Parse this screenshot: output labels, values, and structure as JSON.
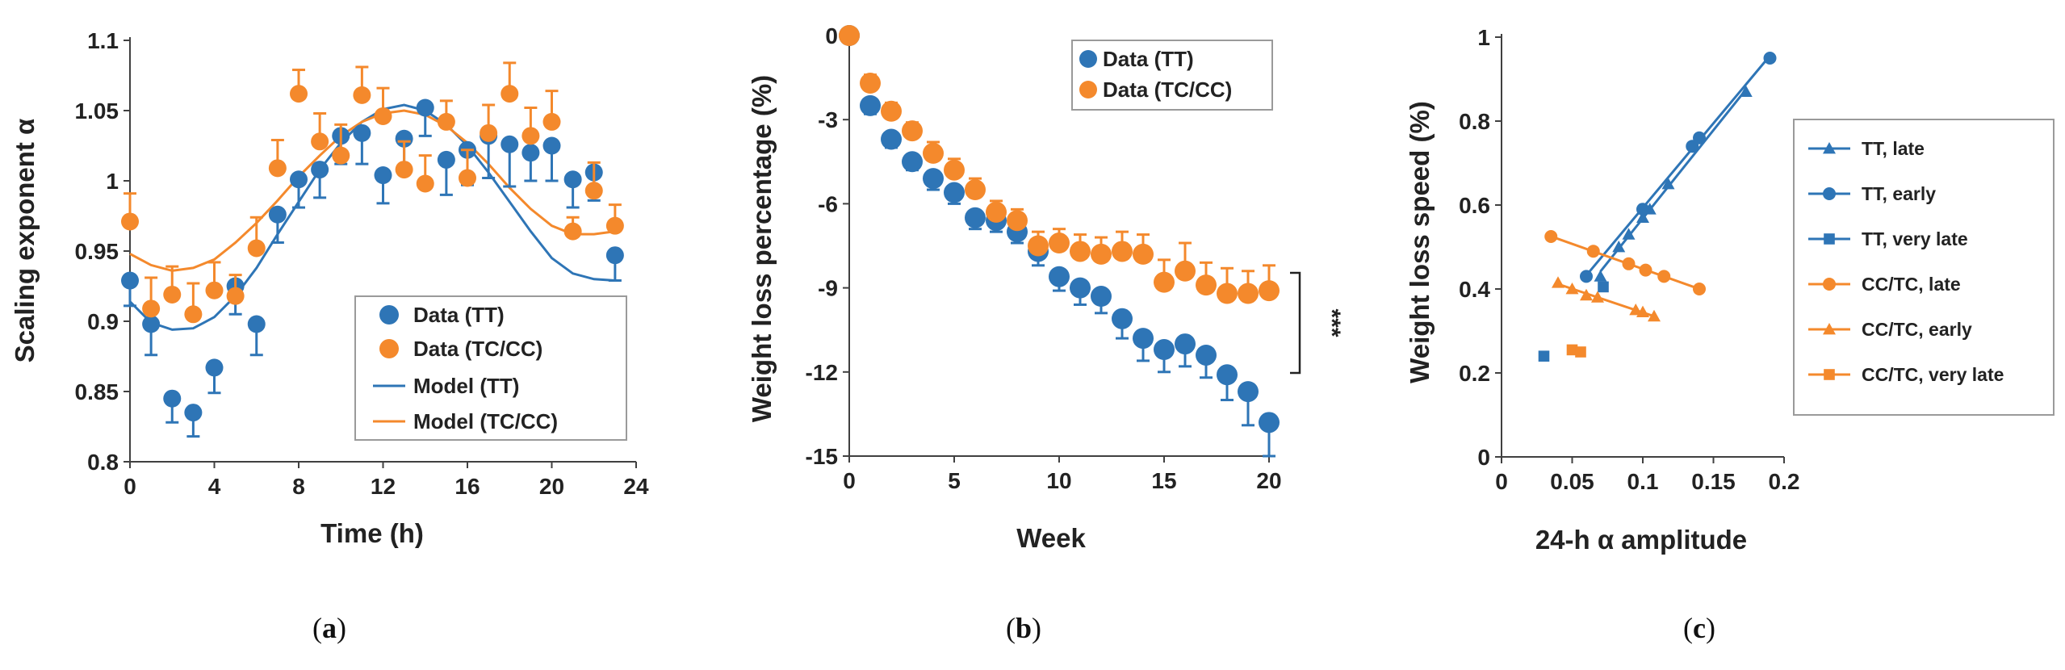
{
  "colors": {
    "tt": "#2e75b6",
    "tc": "#f4892c",
    "axis": "#404040"
  },
  "chart_data": [
    {
      "type": "scatter",
      "panel_label": "a",
      "xlabel": "Time (h)",
      "ylabel": "Scaling exponent α",
      "xlim": [
        0,
        24
      ],
      "ylim": [
        0.8,
        1.1
      ],
      "xticks": [
        "0",
        "4",
        "8",
        "12",
        "16",
        "20",
        "24"
      ],
      "yticks": [
        "0.8",
        "0.85",
        "0.9",
        "0.95",
        "1",
        "1.05",
        "1.1"
      ],
      "series": [
        {
          "name": "Data (TT)",
          "color": "#2e75b6",
          "error_bar": "down",
          "x": [
            0,
            1,
            2,
            3,
            4,
            5,
            6,
            7,
            8,
            9,
            10,
            11,
            12,
            13,
            14,
            15,
            16,
            17,
            18,
            19,
            20,
            21,
            22,
            23
          ],
          "y": [
            0.929,
            0.898,
            0.845,
            0.835,
            0.867,
            0.925,
            0.898,
            0.976,
            1.001,
            1.008,
            1.032,
            1.034,
            1.004,
            1.03,
            1.052,
            1.015,
            1.022,
            1.032,
            1.026,
            1.02,
            1.025,
            1.001,
            1.006,
            0.947
          ],
          "err": [
            0.018,
            0.022,
            0.017,
            0.017,
            0.018,
            0.02,
            0.022,
            0.02,
            0.02,
            0.02,
            0.02,
            0.022,
            0.02,
            0.02,
            0.02,
            0.025,
            0.025,
            0.03,
            0.03,
            0.02,
            0.025,
            0.02,
            0.02,
            0.018
          ]
        },
        {
          "name": "Data (TC/CC)",
          "color": "#f4892c",
          "error_bar": "up",
          "x": [
            0,
            1,
            2,
            3,
            4,
            5,
            6,
            7,
            8,
            9,
            10,
            11,
            12,
            13,
            14,
            15,
            16,
            17,
            18,
            19,
            20,
            21,
            22,
            23
          ],
          "y": [
            0.971,
            0.909,
            0.919,
            0.905,
            0.922,
            0.918,
            0.952,
            1.009,
            1.062,
            1.028,
            1.018,
            1.061,
            1.046,
            1.008,
            0.998,
            1.042,
            1.002,
            1.034,
            1.062,
            1.032,
            1.042,
            0.964,
            0.993,
            0.968
          ],
          "err": [
            0.02,
            0.022,
            0.02,
            0.022,
            0.02,
            0.015,
            0.022,
            0.02,
            0.017,
            0.02,
            0.022,
            0.02,
            0.02,
            0.02,
            0.02,
            0.015,
            0.02,
            0.02,
            0.022,
            0.02,
            0.022,
            0.01,
            0.02,
            0.015
          ]
        },
        {
          "name": "Model (TT)",
          "color": "#2e75b6",
          "line": true,
          "x": [
            0,
            1,
            2,
            3,
            4,
            5,
            6,
            7,
            8,
            9,
            10,
            11,
            12,
            13,
            14,
            15,
            16,
            17,
            18,
            19,
            20,
            21,
            22,
            23
          ],
          "y": [
            0.914,
            0.899,
            0.894,
            0.895,
            0.903,
            0.918,
            0.938,
            0.962,
            0.985,
            1.008,
            1.027,
            1.042,
            1.051,
            1.054,
            1.05,
            1.04,
            1.025,
            1.006,
            0.985,
            0.964,
            0.945,
            0.934,
            0.93,
            0.929
          ]
        },
        {
          "name": "Model (TC/CC)",
          "color": "#f4892c",
          "line": true,
          "x": [
            0,
            1,
            2,
            3,
            4,
            5,
            6,
            7,
            8,
            9,
            10,
            11,
            12,
            13,
            14,
            15,
            16,
            17,
            18,
            19,
            20,
            21,
            22,
            23
          ],
          "y": [
            0.948,
            0.94,
            0.936,
            0.938,
            0.944,
            0.956,
            0.97,
            0.986,
            1.003,
            1.018,
            1.032,
            1.042,
            1.048,
            1.05,
            1.047,
            1.039,
            1.027,
            1.012,
            0.995,
            0.98,
            0.968,
            0.962,
            0.962,
            0.964
          ]
        }
      ],
      "legend": [
        "Data (TT)",
        "Data (TC/CC)",
        "Model (TT)",
        "Model (TC/CC)"
      ]
    },
    {
      "type": "scatter",
      "panel_label": "b",
      "xlabel": "Week",
      "ylabel": "Weight loss percentage (%)",
      "xlim": [
        0,
        20
      ],
      "ylim": [
        -15,
        0
      ],
      "xticks": [
        "0",
        "5",
        "10",
        "15",
        "20"
      ],
      "yticks": [
        "0",
        "-3",
        "-6",
        "-9",
        "-12",
        "-15"
      ],
      "annotation": "***",
      "series": [
        {
          "name": "Data (TT)",
          "color": "#2e75b6",
          "error_bar": "down",
          "x": [
            0,
            1,
            2,
            3,
            4,
            5,
            6,
            7,
            8,
            9,
            10,
            11,
            12,
            13,
            14,
            15,
            16,
            17,
            18,
            19,
            20
          ],
          "y": [
            0,
            -2.5,
            -3.7,
            -4.5,
            -5.1,
            -5.6,
            -6.5,
            -6.6,
            -7.0,
            -7.7,
            -8.6,
            -9.0,
            -9.3,
            -10.1,
            -10.8,
            -11.2,
            -11.0,
            -11.4,
            -12.1,
            -12.7,
            -13.8
          ],
          "err": [
            0,
            0.3,
            0.3,
            0.3,
            0.4,
            0.4,
            0.4,
            0.4,
            0.4,
            0.5,
            0.5,
            0.6,
            0.6,
            0.7,
            0.8,
            0.8,
            0.8,
            0.8,
            0.9,
            1.2,
            1.2
          ]
        },
        {
          "name": "Data (TC/CC)",
          "color": "#f4892c",
          "error_bar": "up",
          "x": [
            0,
            1,
            2,
            3,
            4,
            5,
            6,
            7,
            8,
            9,
            10,
            11,
            12,
            13,
            14,
            15,
            16,
            17,
            18,
            19,
            20
          ],
          "y": [
            0,
            -1.7,
            -2.7,
            -3.4,
            -4.2,
            -4.8,
            -5.5,
            -6.3,
            -6.6,
            -7.5,
            -7.4,
            -7.7,
            -7.8,
            -7.7,
            -7.8,
            -8.8,
            -8.4,
            -8.9,
            -9.2,
            -9.2,
            -9.1
          ],
          "err": [
            0,
            0.3,
            0.3,
            0.3,
            0.4,
            0.4,
            0.4,
            0.4,
            0.4,
            0.5,
            0.5,
            0.6,
            0.6,
            0.7,
            0.7,
            0.8,
            1.0,
            0.8,
            0.9,
            0.8,
            0.9
          ]
        }
      ],
      "legend": [
        "Data (TT)",
        "Data (TC/CC)"
      ]
    },
    {
      "type": "scatter",
      "panel_label": "c",
      "xlabel": "24-h α amplitude",
      "ylabel": "Weight loss speed (%)",
      "xlim": [
        0,
        0.2
      ],
      "ylim": [
        0,
        1
      ],
      "xticks": [
        "0",
        "0.05",
        "0.1",
        "0.15",
        "0.2"
      ],
      "yticks": [
        "0",
        "0.2",
        "0.4",
        "0.6",
        "0.8",
        "1"
      ],
      "series": [
        {
          "name": "TT, late",
          "color": "#2e75b6",
          "marker": "triangle",
          "line": true,
          "x": [
            0.07,
            0.083,
            0.09,
            0.1,
            0.105,
            0.118,
            0.173
          ],
          "y": [
            0.43,
            0.5,
            0.53,
            0.57,
            0.59,
            0.65,
            0.87
          ]
        },
        {
          "name": "TT, early",
          "color": "#2e75b6",
          "marker": "circle",
          "line": true,
          "x": [
            0.06,
            0.1,
            0.135,
            0.14,
            0.19
          ],
          "y": [
            0.43,
            0.59,
            0.74,
            0.76,
            0.95
          ]
        },
        {
          "name": "TT, very late",
          "color": "#2e75b6",
          "marker": "square",
          "x": [
            0.03,
            0.072
          ],
          "y": [
            0.24,
            0.405
          ]
        },
        {
          "name": "CC/TC, late",
          "color": "#f4892c",
          "marker": "circle",
          "line": true,
          "x": [
            0.035,
            0.065,
            0.09,
            0.102,
            0.115,
            0.14
          ],
          "y": [
            0.525,
            0.49,
            0.46,
            0.445,
            0.43,
            0.4
          ]
        },
        {
          "name": "CC/TC, early",
          "color": "#f4892c",
          "marker": "triangle",
          "line": true,
          "x": [
            0.04,
            0.05,
            0.06,
            0.068,
            0.095,
            0.1,
            0.108
          ],
          "y": [
            0.415,
            0.4,
            0.385,
            0.38,
            0.35,
            0.345,
            0.335
          ]
        },
        {
          "name": "CC/TC, very late",
          "color": "#f4892c",
          "marker": "square",
          "x": [
            0.05,
            0.056
          ],
          "y": [
            0.255,
            0.25
          ]
        }
      ],
      "legend": [
        "TT, late",
        "TT, early",
        "TT, very late",
        "CC/TC, late",
        "CC/TC, early",
        "CC/TC, very late"
      ]
    }
  ]
}
